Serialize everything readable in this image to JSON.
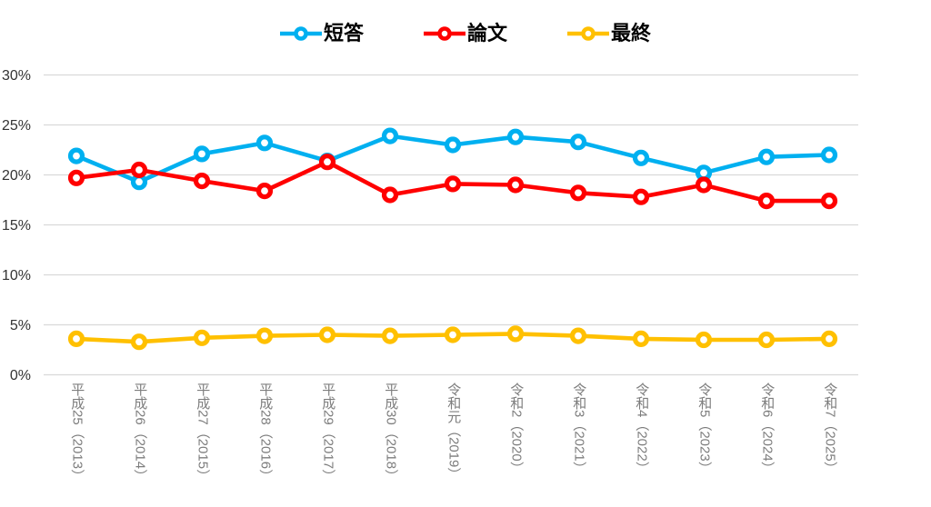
{
  "chart_data": {
    "type": "line",
    "title": "",
    "categories": [
      "平成25（2013）",
      "平成26（2014）",
      "平成27（2015）",
      "平成28（2016）",
      "平成29（2017）",
      "平成30（2018）",
      "令和元（2019）",
      "令和2（2020）",
      "令和3（2021）",
      "令和4（2022）",
      "令和5（2023）",
      "令和6（2024）",
      "令和7（2025）"
    ],
    "series": [
      {
        "name": "短答",
        "color": "#00B0F0",
        "values": [
          21.9,
          19.3,
          22.1,
          23.2,
          21.4,
          23.9,
          23.0,
          23.8,
          23.3,
          21.7,
          20.2,
          21.8,
          22.0
        ]
      },
      {
        "name": "論文",
        "color": "#FF0000",
        "values": [
          19.7,
          20.5,
          19.4,
          18.4,
          21.3,
          18.0,
          19.1,
          19.0,
          18.2,
          17.8,
          19.0,
          17.4,
          17.4
        ]
      },
      {
        "name": "最終",
        "color": "#FFC000",
        "values": [
          3.6,
          3.3,
          3.7,
          3.9,
          4.0,
          3.9,
          4.0,
          4.1,
          3.9,
          3.6,
          3.5,
          3.5,
          3.6
        ]
      }
    ],
    "ylim": [
      0,
      30
    ],
    "ytick_step": 5,
    "ytick_suffix": "%",
    "ytick_labels": [
      "0%",
      "5%",
      "10%",
      "15%",
      "20%",
      "25%",
      "30%"
    ],
    "grid": true,
    "legend_position": "top"
  },
  "colors": {
    "background": "#FFFFFF",
    "gridline": "#D9D9D9",
    "y_tick_text": "#333333",
    "x_tick_text": "#7D7D7D",
    "legend_text": "#000000",
    "marker_fill": "#FFFFFF"
  }
}
